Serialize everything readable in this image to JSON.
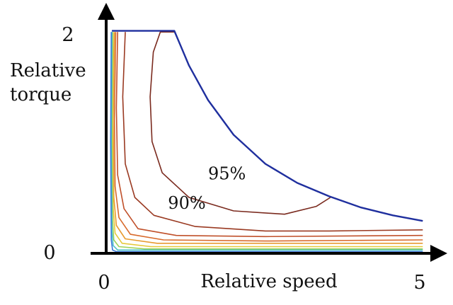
{
  "chart_data": {
    "type": "line",
    "title": "",
    "xlabel": "Relative speed",
    "ylabel_lines": [
      "Relative",
      "torque"
    ],
    "xlim": [
      0,
      5
    ],
    "ylim": [
      0,
      2
    ],
    "x_ticks": [
      {
        "value": 0,
        "label": "0"
      },
      {
        "value": 5,
        "label": "5"
      }
    ],
    "y_ticks": [
      {
        "value": 0,
        "label": "0"
      },
      {
        "value": 2,
        "label": "2"
      }
    ],
    "grid": false,
    "legend": "none",
    "envelope": {
      "color": "#1f2f9e",
      "points": [
        [
          0.09,
          1.99
        ],
        [
          1.07,
          1.99
        ],
        [
          1.3,
          1.68
        ],
        [
          1.6,
          1.37
        ],
        [
          2.0,
          1.06
        ],
        [
          2.5,
          0.8
        ],
        [
          3.0,
          0.63
        ],
        [
          3.5,
          0.51
        ],
        [
          4.0,
          0.41
        ],
        [
          4.5,
          0.34
        ],
        [
          4.97,
          0.29
        ]
      ]
    },
    "contours": [
      {
        "label": "95%",
        "color": "#7a2a1e",
        "points": [
          [
            1.07,
            1.98
          ],
          [
            0.85,
            1.98
          ],
          [
            0.74,
            1.8
          ],
          [
            0.69,
            1.4
          ],
          [
            0.72,
            1.0
          ],
          [
            0.88,
            0.72
          ],
          [
            1.3,
            0.5
          ],
          [
            2.0,
            0.38
          ],
          [
            2.8,
            0.35
          ],
          [
            3.3,
            0.42
          ],
          [
            3.52,
            0.5
          ]
        ]
      },
      {
        "label": "90%",
        "color": "#9a3a22",
        "points": [
          [
            0.3,
            1.98
          ],
          [
            0.26,
            1.4
          ],
          [
            0.3,
            0.8
          ],
          [
            0.45,
            0.5
          ],
          [
            0.75,
            0.34
          ],
          [
            1.4,
            0.24
          ],
          [
            2.5,
            0.2
          ],
          [
            3.5,
            0.2
          ],
          [
            4.97,
            0.21
          ]
        ]
      },
      {
        "label": "",
        "color": "#c0502a",
        "points": [
          [
            0.18,
            1.98
          ],
          [
            0.16,
            1.3
          ],
          [
            0.18,
            0.7
          ],
          [
            0.28,
            0.4
          ],
          [
            0.5,
            0.22
          ],
          [
            1.1,
            0.16
          ],
          [
            2.5,
            0.15
          ],
          [
            4.97,
            0.16
          ]
        ]
      },
      {
        "label": "",
        "color": "#d86a2c",
        "points": [
          [
            0.15,
            1.98
          ],
          [
            0.13,
            1.2
          ],
          [
            0.14,
            0.6
          ],
          [
            0.2,
            0.32
          ],
          [
            0.38,
            0.17
          ],
          [
            0.9,
            0.12
          ],
          [
            2.5,
            0.11
          ],
          [
            4.97,
            0.12
          ]
        ]
      },
      {
        "label": "",
        "color": "#e89b30",
        "points": [
          [
            0.13,
            1.98
          ],
          [
            0.11,
            1.2
          ],
          [
            0.12,
            0.5
          ],
          [
            0.16,
            0.25
          ],
          [
            0.3,
            0.13
          ],
          [
            0.8,
            0.09
          ],
          [
            4.97,
            0.09
          ]
        ]
      },
      {
        "label": "",
        "color": "#e6c93a",
        "points": [
          [
            0.11,
            1.98
          ],
          [
            0.1,
            1.0
          ],
          [
            0.11,
            0.4
          ],
          [
            0.14,
            0.18
          ],
          [
            0.25,
            0.09
          ],
          [
            0.7,
            0.06
          ],
          [
            4.97,
            0.06
          ]
        ]
      },
      {
        "label": "",
        "color": "#9fd25a",
        "points": [
          [
            0.1,
            1.98
          ],
          [
            0.09,
            1.0
          ],
          [
            0.1,
            0.3
          ],
          [
            0.12,
            0.12
          ],
          [
            0.2,
            0.06
          ],
          [
            0.6,
            0.04
          ],
          [
            4.97,
            0.04
          ]
        ]
      },
      {
        "label": "",
        "color": "#4cc3c8",
        "points": [
          [
            0.09,
            1.98
          ],
          [
            0.08,
            1.0
          ],
          [
            0.09,
            0.2
          ],
          [
            0.11,
            0.07
          ],
          [
            0.18,
            0.03
          ],
          [
            4.97,
            0.03
          ]
        ]
      },
      {
        "label": "",
        "color": "#3a78d8",
        "points": [
          [
            0.08,
            1.98
          ],
          [
            0.07,
            1.0
          ],
          [
            0.08,
            0.12
          ],
          [
            0.1,
            0.03
          ],
          [
            0.16,
            0.015
          ],
          [
            4.97,
            0.015
          ]
        ]
      }
    ],
    "annotations": [
      {
        "text": "95%",
        "x": 1.6,
        "y": 0.66
      },
      {
        "text": "90%",
        "x": 0.97,
        "y": 0.4
      }
    ]
  }
}
